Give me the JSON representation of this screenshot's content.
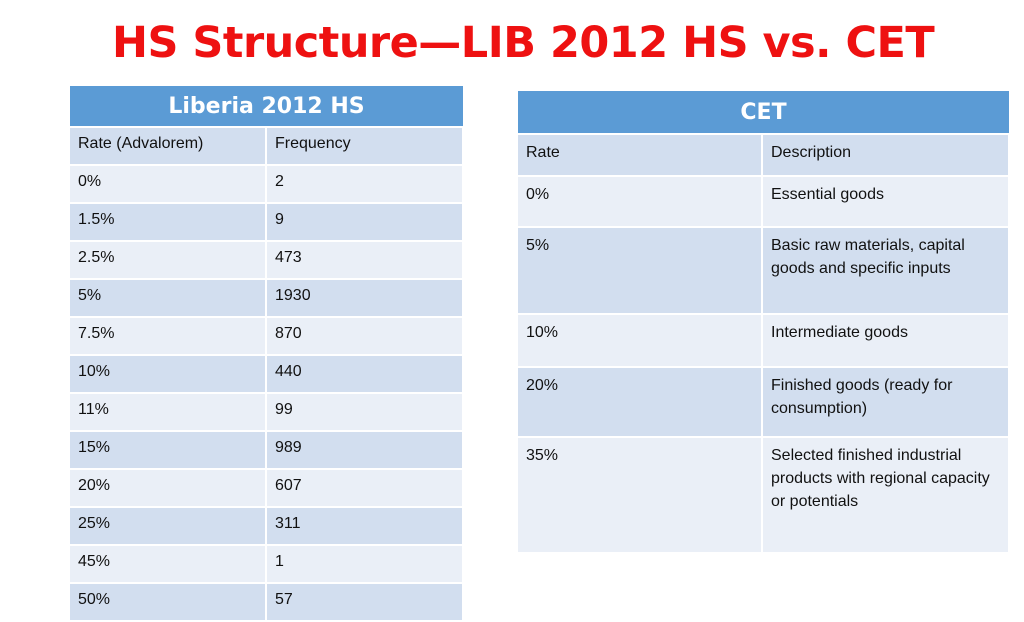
{
  "title": "HS Structure—LIB 2012 HS vs. CET",
  "liberia_table": {
    "heading": "Liberia 2012 HS",
    "columns": [
      "Rate (Advalorem)",
      "Frequency"
    ],
    "rows": [
      [
        "0%",
        "2"
      ],
      [
        "1.5%",
        "9"
      ],
      [
        "2.5%",
        "473"
      ],
      [
        "5%",
        "1930"
      ],
      [
        "7.5%",
        "870"
      ],
      [
        "10%",
        "440"
      ],
      [
        "11%",
        "99"
      ],
      [
        "15%",
        "989"
      ],
      [
        "20%",
        "607"
      ],
      [
        "25%",
        "311"
      ],
      [
        "45%",
        "1"
      ],
      [
        "50%",
        "57"
      ]
    ]
  },
  "cet_table": {
    "heading": "CET",
    "columns": [
      "Rate",
      "Description"
    ],
    "rows": [
      [
        "0%",
        "Essential goods"
      ],
      [
        "5%",
        "Basic raw materials, capital goods and specific inputs"
      ],
      [
        "10%",
        "Intermediate goods"
      ],
      [
        "20%",
        "Finished goods (ready for consumption)"
      ],
      [
        "35%",
        "Selected finished industrial products with regional capacity or potentials"
      ]
    ]
  },
  "colors": {
    "title": "#ee1111",
    "header": "#5b9bd5",
    "row_dark": "#d2deef",
    "row_light": "#eaeff7"
  }
}
